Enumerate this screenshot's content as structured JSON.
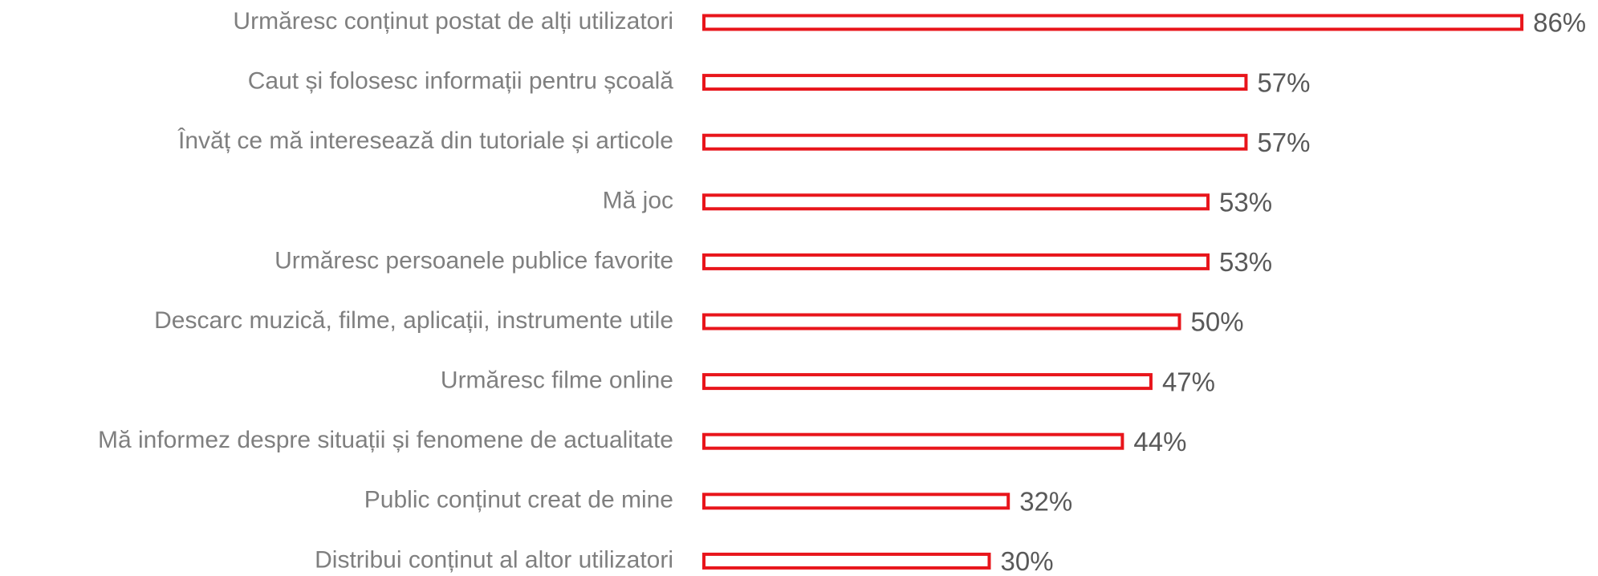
{
  "chart_data": {
    "type": "bar",
    "orientation": "horizontal",
    "categories": [
      "Urmăresc conținut postat de alți utilizatori",
      "Caut și folosesc informații pentru școală",
      "Învăț ce mă interesează din tutoriale și articole",
      "Mă joc",
      "Urmăresc persoanele publice favorite",
      "Descarc muzică, filme, aplicații, instrumente utile",
      "Urmăresc filme online",
      "Mă informez despre situații și fenomene de actualitate",
      "Public conținut creat de mine",
      "Distribui conținut al altor utilizatori"
    ],
    "values": [
      86,
      57,
      57,
      53,
      53,
      50,
      47,
      44,
      32,
      30
    ],
    "value_labels": [
      "86%",
      "57%",
      "57%",
      "53%",
      "53%",
      "50%",
      "47%",
      "44%",
      "32%",
      "30%"
    ],
    "color": "#e8151b"
  }
}
